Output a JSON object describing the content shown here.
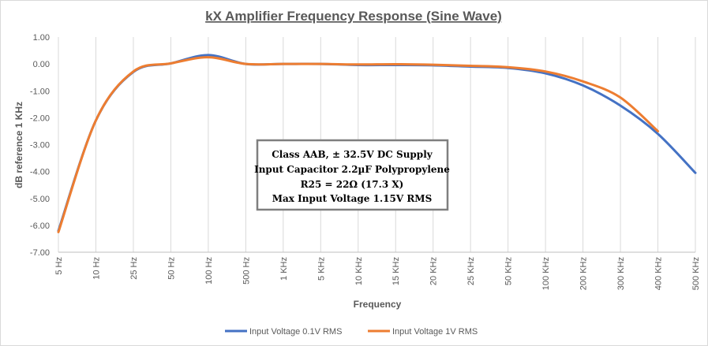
{
  "chart_data": {
    "type": "line",
    "title": "kX Amplifier Frequency Response (Sine Wave)",
    "xlabel": "Frequency",
    "ylabel": "dB reference 1 KHz",
    "ylim": [
      -7,
      1
    ],
    "yticks": [
      "1.00",
      "0.00",
      "-1.00",
      "-2.00",
      "-3.00",
      "-4.00",
      "-5.00",
      "-6.00",
      "-7.00"
    ],
    "categories": [
      "5 Hz",
      "10 Hz",
      "25 Hz",
      "50 Hz",
      "100 Hz",
      "500 Hz",
      "1 KHz",
      "5 KHz",
      "10 KHz",
      "15 KHz",
      "20 KHz",
      "25 KHz",
      "50 KHz",
      "100 KHz",
      "200 KHz",
      "300 KHz",
      "400 KHz",
      "500 KHz"
    ],
    "grid": "vertical",
    "legend_position": "bottom",
    "series": [
      {
        "name": "Input Voltage 0.1V RMS",
        "color": "#4472c4",
        "values": [
          -6.2,
          -2.1,
          -0.3,
          0.02,
          0.33,
          0.0,
          0.0,
          0.0,
          -0.04,
          -0.04,
          -0.05,
          -0.1,
          -0.15,
          -0.35,
          -0.8,
          -1.55,
          -2.6,
          -4.05
        ]
      },
      {
        "name": "Input Voltage 1V RMS",
        "color": "#ed7d31",
        "values": [
          -6.25,
          -2.1,
          -0.28,
          0.02,
          0.25,
          0.0,
          0.0,
          0.0,
          -0.02,
          -0.01,
          -0.03,
          -0.07,
          -0.12,
          -0.28,
          -0.65,
          -1.25,
          -2.5,
          null
        ]
      }
    ],
    "annotation": [
      "Class AAB, ± 32.5V  DC Supply",
      "Input Capacitor 2.2µF Polypropylene",
      "R25 = 22Ω (17.3 X)",
      "Max Input Voltage 1.15V RMS"
    ]
  }
}
